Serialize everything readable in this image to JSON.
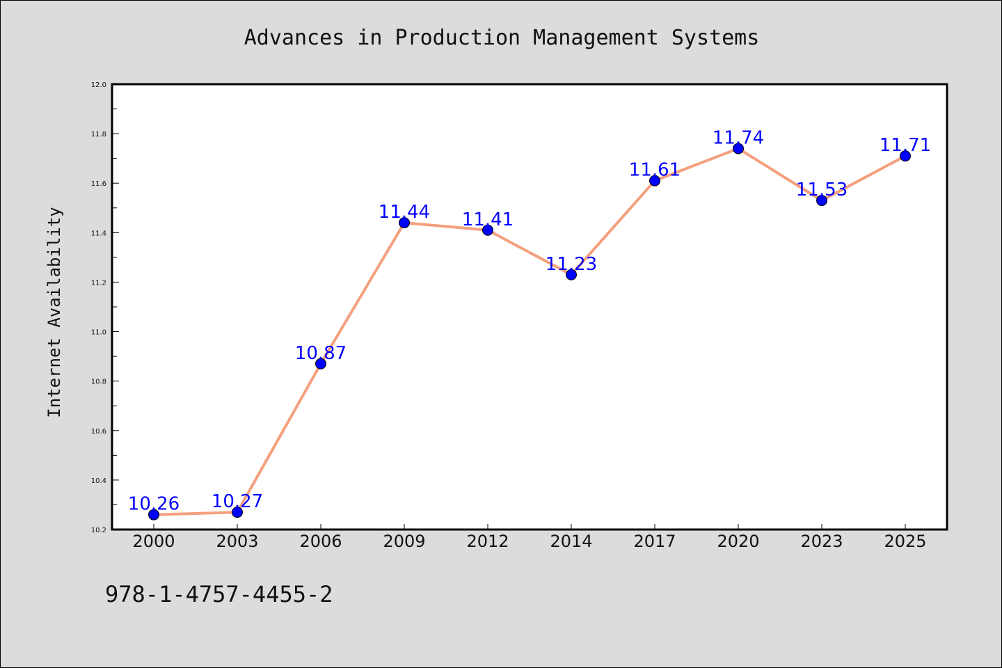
{
  "chart_data": {
    "type": "line",
    "title": "Advances in Production Management Systems",
    "xlabel": "",
    "ylabel": "Internet Availability",
    "categories": [
      "2000",
      "2003",
      "2006",
      "2009",
      "2012",
      "2014",
      "2017",
      "2020",
      "2023",
      "2025"
    ],
    "series": [
      {
        "values": [
          10.26,
          10.27,
          10.87,
          11.44,
          11.41,
          11.23,
          11.61,
          11.74,
          11.53,
          11.71
        ],
        "data_labels": [
          "10.26",
          "10.27",
          "10.87",
          "11.44",
          "11.41",
          "11.23",
          "11.61",
          "11.74",
          "11.53",
          "11.71"
        ],
        "line_color": "#f4a07e",
        "marker_color": "#0000ff",
        "label_color": "#0000ff"
      }
    ],
    "ylim": [
      10.2,
      12.0
    ],
    "yticks": [
      "10.2",
      "10.4",
      "10.6",
      "10.8",
      "11.0",
      "11.2",
      "11.4",
      "11.6",
      "11.8",
      "12.0"
    ],
    "grid": false,
    "legend": "none"
  },
  "footer": {
    "text": "978-1-4757-4455-2"
  },
  "colors": {
    "figure_background": "#dcdcdc",
    "plot_background": "#ffffff"
  }
}
